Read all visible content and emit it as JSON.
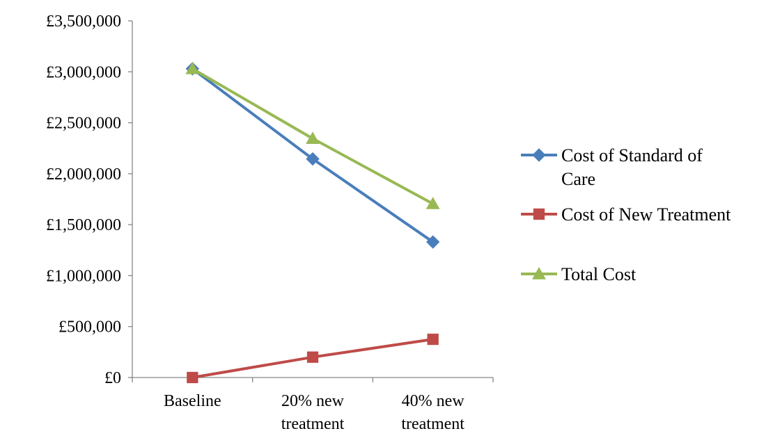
{
  "chart_data": {
    "type": "line",
    "categories": [
      "Baseline",
      "20% new treatment",
      "40% new treatment"
    ],
    "category_lines": [
      [
        "Baseline"
      ],
      [
        "20% new",
        "treatment"
      ],
      [
        "40% new",
        "treatment"
      ]
    ],
    "ylim": [
      0,
      3500000
    ],
    "y_ticks": [
      0,
      500000,
      1000000,
      1500000,
      2000000,
      2500000,
      3000000,
      3500000
    ],
    "y_tick_labels": [
      "£0",
      "£500,000",
      "£1,000,000",
      "£1,500,000",
      "£2,000,000",
      "£2,500,000",
      "£3,000,000",
      "£3,500,000"
    ],
    "grid": false,
    "legend_position": "right",
    "series": [
      {
        "name": "Cost of Standard of Care",
        "legend_lines": [
          "Cost of Standard of",
          "Care"
        ],
        "values": [
          3030000,
          2145000,
          1330000
        ],
        "color": "#4a7ebb",
        "marker": "diamond"
      },
      {
        "name": "Cost of New Treatment",
        "legend_lines": [
          "Cost of New Treatment"
        ],
        "values": [
          0,
          200000,
          375000
        ],
        "color": "#be4b48",
        "marker": "square"
      },
      {
        "name": "Total Cost",
        "legend_lines": [
          "Total Cost"
        ],
        "values": [
          3030000,
          2345000,
          1705000
        ],
        "color": "#98b954",
        "marker": "triangle"
      }
    ]
  }
}
